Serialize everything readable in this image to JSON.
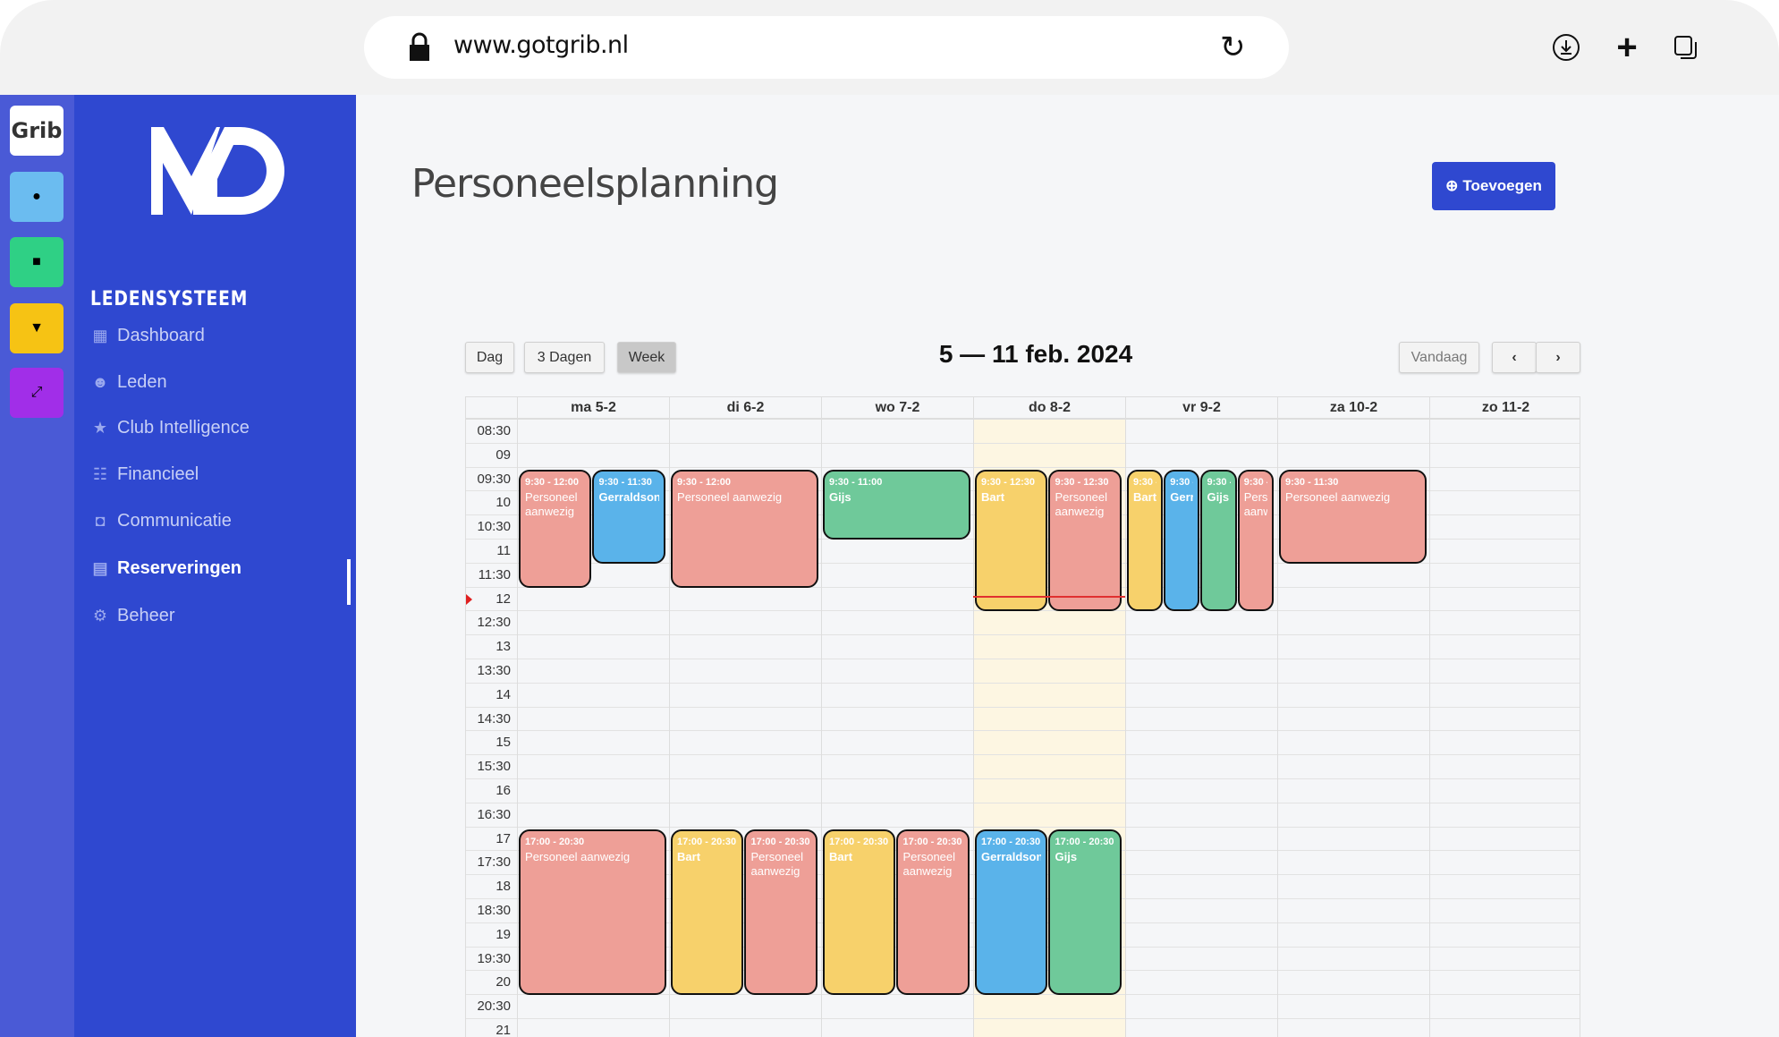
{
  "browser": {
    "url": "www.gotgrib.nl",
    "icons": [
      "lock-icon",
      "reload-icon",
      "download-icon",
      "new-tab-icon",
      "tabs-icon"
    ]
  },
  "rail": {
    "grib": "Grib",
    "tiles": [
      {
        "name": "members",
        "color": "#6bbcf0"
      },
      {
        "name": "calendar",
        "color": "#2fd085"
      },
      {
        "name": "trophy",
        "color": "#f6c314"
      },
      {
        "name": "dumbbell",
        "color": "#a12ee8"
      }
    ]
  },
  "sidebar": {
    "brand": "LEDENSYSTEEM",
    "items": [
      {
        "label": "Dashboard",
        "icon": "dashboard-icon"
      },
      {
        "label": "Leden",
        "icon": "users-icon"
      },
      {
        "label": "Club Intelligence",
        "icon": "stars-icon"
      },
      {
        "label": "Financieel",
        "icon": "invoice-icon"
      },
      {
        "label": "Communicatie",
        "icon": "chat-icon"
      },
      {
        "label": "Reserveringen",
        "icon": "calendar-icon",
        "active": true
      },
      {
        "label": "Beheer",
        "icon": "gear-icon"
      }
    ]
  },
  "page": {
    "title": "Personeelsplanning",
    "add_label": "Toevoegen"
  },
  "toolbar": {
    "views": [
      "Dag",
      "3 Dagen",
      "Week"
    ],
    "active_view": "Week",
    "range": "5 — 11 feb. 2024",
    "today": "Vandaag"
  },
  "calendar": {
    "days": [
      "ma 5-2",
      "di 6-2",
      "wo 7-2",
      "do 8-2",
      "vr 9-2",
      "za 10-2",
      "zo 11-2"
    ],
    "today_index": 3,
    "now": "12:10",
    "times": [
      "08:30",
      "09",
      "09:30",
      "10",
      "10:30",
      "11",
      "11:30",
      "12",
      "12:30",
      "13",
      "13:30",
      "14",
      "14:30",
      "15",
      "15:30",
      "16",
      "16:30",
      "17",
      "17:30",
      "18",
      "18:30",
      "19",
      "19:30",
      "20",
      "20:30",
      "21"
    ],
    "colors": {
      "pink": "#ee9f97",
      "blue": "#5ab3ea",
      "green": "#6fc99a",
      "yellow": "#f7d16b"
    },
    "events": [
      {
        "day": 0,
        "start": "9:30",
        "end": "12:00",
        "title": "Personeel aanwezig",
        "color": "pink"
      },
      {
        "day": 0,
        "start": "9:30",
        "end": "11:30",
        "title": "Gerraldson",
        "color": "blue"
      },
      {
        "day": 1,
        "start": "9:30",
        "end": "12:00",
        "title": "Personeel aanwezig",
        "color": "pink"
      },
      {
        "day": 2,
        "start": "9:30",
        "end": "11:00",
        "title": "Gijs",
        "color": "green"
      },
      {
        "day": 3,
        "start": "9:30",
        "end": "12:30",
        "title": "Bart",
        "color": "yellow"
      },
      {
        "day": 3,
        "start": "9:30",
        "end": "12:30",
        "title": "Personeel aanwezig",
        "color": "pink"
      },
      {
        "day": 4,
        "start": "9:30",
        "end": "12:30",
        "title": "Bart",
        "color": "yellow"
      },
      {
        "day": 4,
        "start": "9:30",
        "end": "12:30",
        "title": "Gerraldson",
        "color": "blue"
      },
      {
        "day": 4,
        "start": "9:30",
        "end": "12:30",
        "title": "Gijs",
        "color": "green"
      },
      {
        "day": 4,
        "start": "9:30",
        "end": "12:30",
        "title": "Personeel aanwezig",
        "color": "pink"
      },
      {
        "day": 5,
        "start": "9:30",
        "end": "11:30",
        "title": "Personeel aanwezig",
        "color": "pink"
      },
      {
        "day": 0,
        "start": "17:00",
        "end": "20:30",
        "title": "Personeel aanwezig",
        "color": "pink"
      },
      {
        "day": 1,
        "start": "17:00",
        "end": "20:30",
        "title": "Bart",
        "color": "yellow"
      },
      {
        "day": 1,
        "start": "17:00",
        "end": "20:30",
        "title": "Personeel aanwezig",
        "color": "pink"
      },
      {
        "day": 2,
        "start": "17:00",
        "end": "20:30",
        "title": "Bart",
        "color": "yellow"
      },
      {
        "day": 2,
        "start": "17:00",
        "end": "20:30",
        "title": "Personeel aanwezig",
        "color": "pink"
      },
      {
        "day": 3,
        "start": "17:00",
        "end": "20:30",
        "title": "Gerraldson",
        "color": "blue"
      },
      {
        "day": 3,
        "start": "17:00",
        "end": "20:30",
        "title": "Gijs",
        "color": "green"
      }
    ]
  }
}
